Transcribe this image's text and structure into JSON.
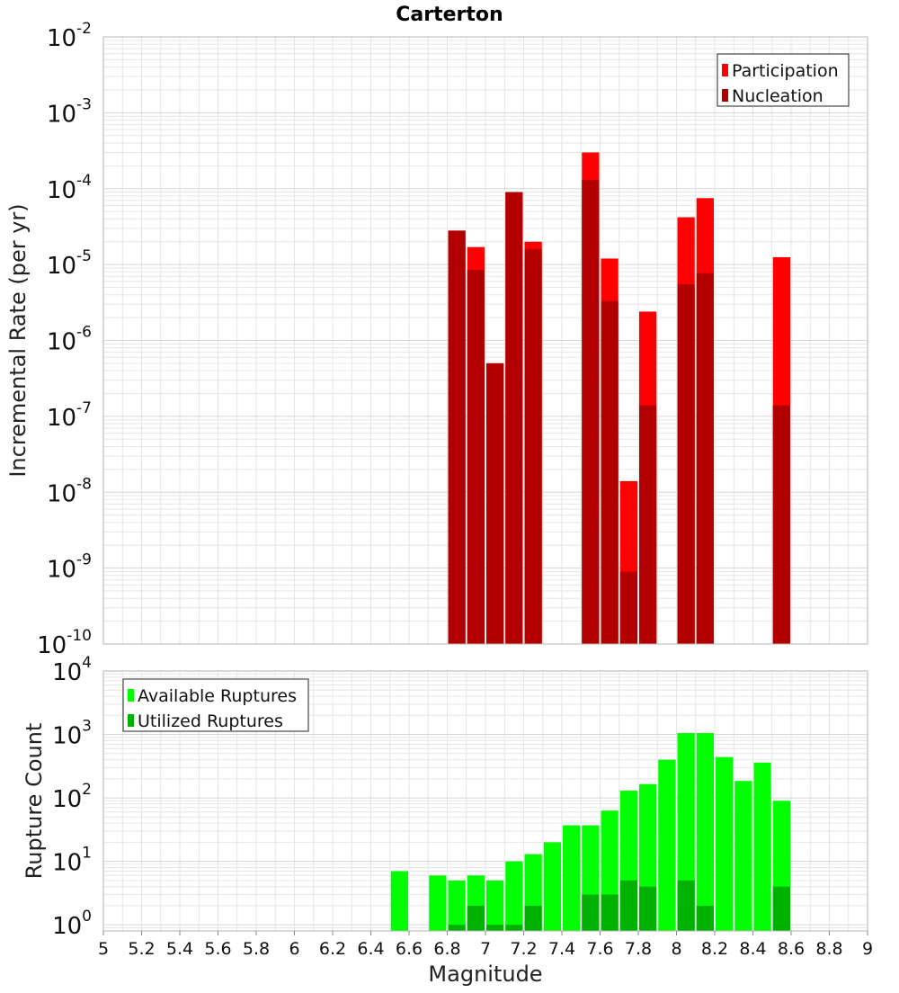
{
  "title": "Carterton",
  "xlabel": "Magnitude",
  "colors": {
    "participation": "#ff0000",
    "nucleation": "#b20000",
    "available": "#00ff00",
    "utilized": "#00b200",
    "grid": "#e6e6e6",
    "frame": "#b4b4b4"
  },
  "chart_data": [
    {
      "type": "bar",
      "panel": "top",
      "title": "Carterton",
      "xlabel": "Magnitude",
      "ylabel": "Incremental Rate (per yr)",
      "xlim": [
        5,
        9
      ],
      "ylim": [
        1e-10,
        0.01
      ],
      "yscale": "log",
      "grid": true,
      "legend_position": "top-right",
      "x": [
        6.85,
        6.95,
        7.05,
        7.15,
        7.25,
        7.55,
        7.65,
        7.75,
        7.85,
        8.05,
        8.15,
        8.55
      ],
      "series": [
        {
          "name": "Participation",
          "color": "#ff0000",
          "values": [
            2.8e-05,
            1.7e-05,
            5e-07,
            9e-05,
            2e-05,
            0.0003,
            1.2e-05,
            1.4e-08,
            2.4e-06,
            4.2e-05,
            7.5e-05,
            1.25e-05
          ]
        },
        {
          "name": "Nucleation",
          "color": "#b20000",
          "values": [
            2.8e-05,
            8.5e-06,
            5e-07,
            9e-05,
            1.6e-05,
            0.00013,
            3.3e-06,
            9e-10,
            1.4e-07,
            5.5e-06,
            7.7e-06,
            1.4e-07
          ]
        }
      ]
    },
    {
      "type": "bar",
      "panel": "bottom",
      "xlabel": "Magnitude",
      "ylabel": "Rupture Count",
      "xlim": [
        5,
        9
      ],
      "ylim": [
        0.8,
        10000
      ],
      "yscale": "log",
      "grid": true,
      "legend_position": "top-left",
      "xticks": [
        "5",
        "5.2",
        "5.4",
        "5.6",
        "5.8",
        "6",
        "6.2",
        "6.4",
        "6.6",
        "6.8",
        "7",
        "7.2",
        "7.4",
        "7.6",
        "7.8",
        "8",
        "8.2",
        "8.4",
        "8.6",
        "8.8",
        "9"
      ],
      "x": [
        6.55,
        6.75,
        6.85,
        6.95,
        7.05,
        7.15,
        7.25,
        7.35,
        7.45,
        7.55,
        7.65,
        7.75,
        7.85,
        7.95,
        8.05,
        8.15,
        8.25,
        8.35,
        8.45,
        8.55
      ],
      "series": [
        {
          "name": "Available Ruptures",
          "color": "#00ff00",
          "values": [
            7,
            6,
            5,
            6,
            5,
            10,
            13,
            20,
            37,
            37,
            63,
            130,
            165,
            400,
            1050,
            1050,
            440,
            185,
            360,
            90
          ]
        },
        {
          "name": "Utilized Ruptures",
          "color": "#00b200",
          "values": [
            0,
            0,
            1,
            2,
            1,
            1,
            2,
            0,
            0,
            3,
            3,
            5,
            4,
            0,
            5,
            2,
            0,
            0,
            0,
            4
          ]
        }
      ]
    }
  ]
}
